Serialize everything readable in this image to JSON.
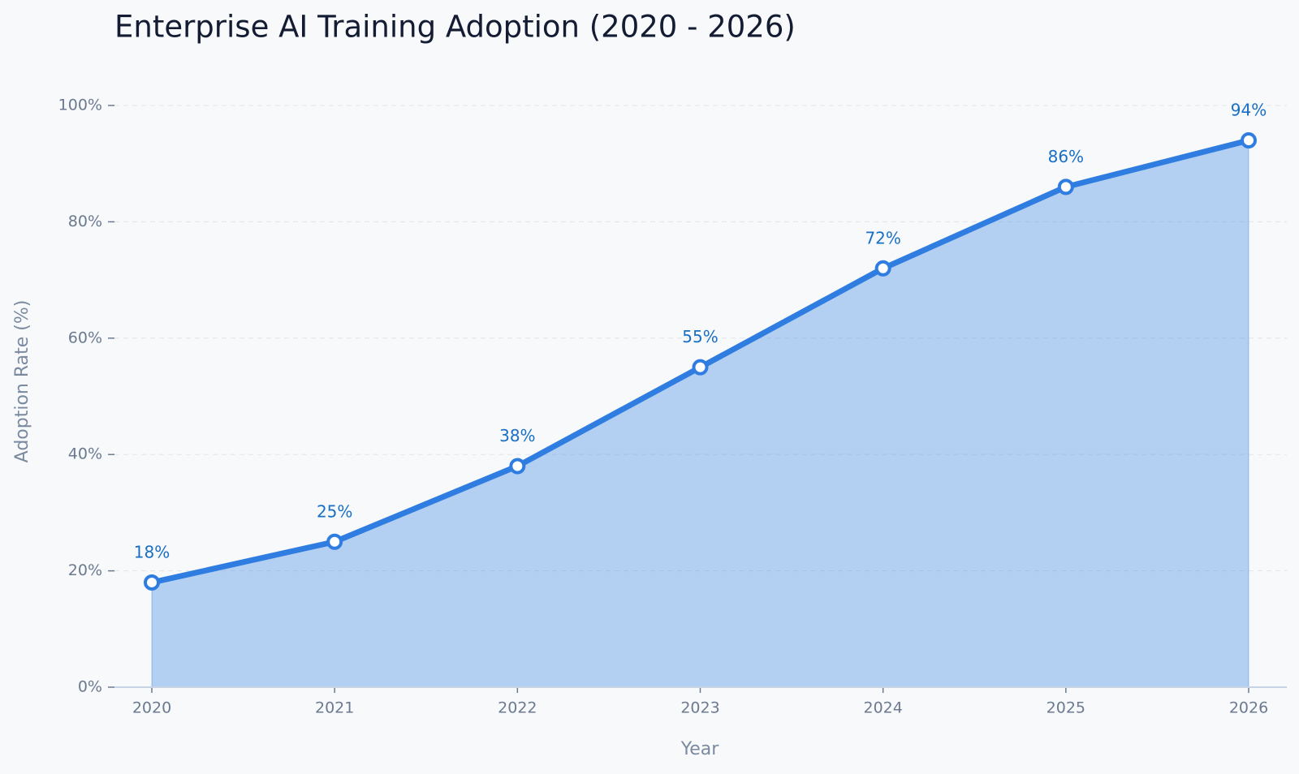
{
  "chart_data": {
    "type": "area",
    "title": "Enterprise AI Training Adoption (2020 - 2026)",
    "x_label": "Year",
    "y_label": "Adoption Rate (%)",
    "categories": [
      "2020",
      "2021",
      "2022",
      "2023",
      "2024",
      "2025",
      "2026"
    ],
    "values": [
      18,
      25,
      38,
      55,
      72,
      86,
      94
    ],
    "value_labels": [
      "18%",
      "25%",
      "38%",
      "55%",
      "72%",
      "86%",
      "94%"
    ],
    "color": "#2f7de1",
    "ylim": [
      0,
      100
    ],
    "yticks": [
      {
        "value": 0,
        "label": "0%"
      },
      {
        "value": 20,
        "label": "20%"
      },
      {
        "value": 40,
        "label": "40%"
      },
      {
        "value": 60,
        "label": "60%"
      },
      {
        "value": 80,
        "label": "80%"
      },
      {
        "value": 100,
        "label": "100%"
      }
    ],
    "grid": true
  }
}
